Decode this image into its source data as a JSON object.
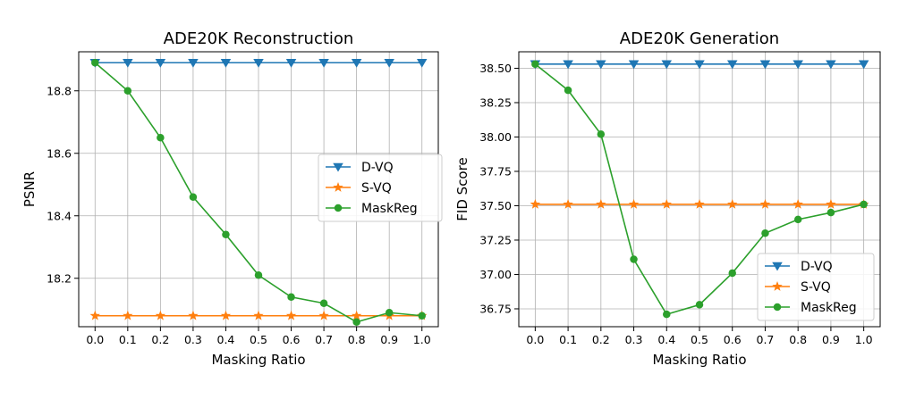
{
  "chart_data": [
    {
      "type": "line",
      "title": "ADE20K Reconstruction",
      "xlabel": "Masking Ratio",
      "ylabel": "PSNR",
      "x": [
        0.0,
        0.1,
        0.2,
        0.3,
        0.4,
        0.5,
        0.6,
        0.7,
        0.8,
        0.9,
        1.0
      ],
      "x_tick_labels": [
        "0.0",
        "0.1",
        "0.2",
        "0.3",
        "0.4",
        "0.5",
        "0.6",
        "0.7",
        "0.8",
        "0.9",
        "1.0"
      ],
      "y_ticks": [
        18.2,
        18.4,
        18.6,
        18.8
      ],
      "y_tick_labels": [
        "18.2",
        "18.4",
        "18.6",
        "18.8"
      ],
      "xlim": [
        -0.05,
        1.05
      ],
      "ylim": [
        18.045,
        18.925
      ],
      "grid": true,
      "legend_position": "center-right",
      "series": [
        {
          "name": "D-VQ",
          "color": "#1f77b4",
          "marker": "triangle-down",
          "values": [
            18.89,
            18.89,
            18.89,
            18.89,
            18.89,
            18.89,
            18.89,
            18.89,
            18.89,
            18.89,
            18.89
          ]
        },
        {
          "name": "S-VQ",
          "color": "#ff7f0e",
          "marker": "star",
          "values": [
            18.08,
            18.08,
            18.08,
            18.08,
            18.08,
            18.08,
            18.08,
            18.08,
            18.08,
            18.08,
            18.08
          ]
        },
        {
          "name": "MaskReg",
          "color": "#2ca02c",
          "marker": "circle",
          "values": [
            18.89,
            18.8,
            18.65,
            18.46,
            18.34,
            18.21,
            18.14,
            18.12,
            18.06,
            18.09,
            18.08
          ]
        }
      ]
    },
    {
      "type": "line",
      "title": "ADE20K Generation",
      "xlabel": "Masking Ratio",
      "ylabel": "FID Score",
      "x": [
        0.0,
        0.1,
        0.2,
        0.3,
        0.4,
        0.5,
        0.6,
        0.7,
        0.8,
        0.9,
        1.0
      ],
      "x_tick_labels": [
        "0.0",
        "0.1",
        "0.2",
        "0.3",
        "0.4",
        "0.5",
        "0.6",
        "0.7",
        "0.8",
        "0.9",
        "1.0"
      ],
      "y_ticks": [
        36.75,
        37.0,
        37.25,
        37.5,
        37.75,
        38.0,
        38.25,
        38.5
      ],
      "y_tick_labels": [
        "36.75",
        "37.00",
        "37.25",
        "37.50",
        "37.75",
        "38.00",
        "38.25",
        "38.50"
      ],
      "xlim": [
        -0.05,
        1.05
      ],
      "ylim": [
        36.62,
        38.62
      ],
      "grid": true,
      "legend_position": "lower-right",
      "series": [
        {
          "name": "D-VQ",
          "color": "#1f77b4",
          "marker": "triangle-down",
          "values": [
            38.53,
            38.53,
            38.53,
            38.53,
            38.53,
            38.53,
            38.53,
            38.53,
            38.53,
            38.53,
            38.53
          ]
        },
        {
          "name": "S-VQ",
          "color": "#ff7f0e",
          "marker": "star",
          "values": [
            37.51,
            37.51,
            37.51,
            37.51,
            37.51,
            37.51,
            37.51,
            37.51,
            37.51,
            37.51,
            37.51
          ]
        },
        {
          "name": "MaskReg",
          "color": "#2ca02c",
          "marker": "circle",
          "values": [
            38.53,
            38.34,
            38.02,
            37.11,
            36.71,
            36.78,
            37.01,
            37.3,
            37.4,
            37.45,
            37.51
          ]
        }
      ]
    }
  ]
}
